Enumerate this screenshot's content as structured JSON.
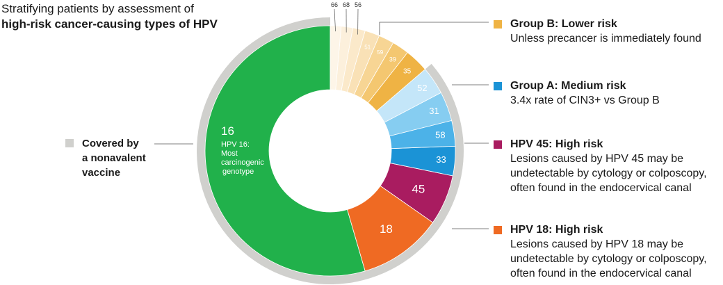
{
  "title": {
    "line1": "Stratifying patients by assessment of",
    "line2": "high-risk cancer-causing types of HPV"
  },
  "chart_data": {
    "type": "pie",
    "slices": [
      {
        "label": "16",
        "value": 54.5,
        "color": "#21b14b",
        "group": "HPV 16"
      },
      {
        "label": "18",
        "value": 10.8,
        "color": "#ef6a23",
        "group": "HPV 18"
      },
      {
        "label": "45",
        "value": 6.5,
        "color": "#a91c60",
        "group": "HPV 45"
      },
      {
        "label": "33",
        "value": 3.8,
        "color": "#1b93d6",
        "group": "Group A"
      },
      {
        "label": "58",
        "value": 3.3,
        "color": "#4cb2e8",
        "group": "Group A"
      },
      {
        "label": "31",
        "value": 3.8,
        "color": "#86cdf1",
        "group": "Group A"
      },
      {
        "label": "52",
        "value": 3.6,
        "color": "#c4e6f9",
        "group": "Group A"
      },
      {
        "label": "35",
        "value": 3.1,
        "color": "#efb344",
        "group": "Group B"
      },
      {
        "label": "39",
        "value": 2.2,
        "color": "#f4c770",
        "group": "Group B"
      },
      {
        "label": "59",
        "value": 2.0,
        "color": "#f7d594",
        "group": "Group B"
      },
      {
        "label": "51",
        "value": 1.9,
        "color": "#f9e1b6",
        "group": "Group B"
      },
      {
        "label": "56",
        "value": 1.6,
        "color": "#fbe9ca",
        "group": "Group B"
      },
      {
        "label": "68",
        "value": 1.5,
        "color": "#fcf0dc",
        "group": "Group B"
      },
      {
        "label": "66",
        "value": 1.4,
        "color": "#fdf5e8",
        "group": "Group B"
      }
    ],
    "hpv16_note": "HPV 16: Most carcinogenic genotype",
    "covered_range_slices": [
      "16",
      "18",
      "45",
      "33",
      "58",
      "31",
      "52"
    ],
    "covered_color": "#d0d0cd"
  },
  "covered": {
    "text1": "Covered by",
    "text2": "a nonavalent",
    "text3": "vaccine"
  },
  "legend": [
    {
      "color": "#efb344",
      "title": "Group B: Lower risk",
      "desc": [
        "Unless precancer is immediately found"
      ]
    },
    {
      "color": "#1b93d6",
      "title": "Group A: Medium risk",
      "desc": [
        "3.4x rate of CIN3+ vs Group B"
      ]
    },
    {
      "color": "#a91c60",
      "title": "HPV 45: High risk",
      "desc": [
        "Lesions caused by HPV 45 may be",
        "undetectable by cytology or colposcopy,",
        "often found in the endocervical canal"
      ]
    },
    {
      "color": "#ef6a23",
      "title": "HPV 18: High risk",
      "desc": [
        "Lesions caused by HPV 18 may be",
        "undetectable by cytology or colposcopy,",
        "often found in the endocervical canal"
      ]
    }
  ]
}
